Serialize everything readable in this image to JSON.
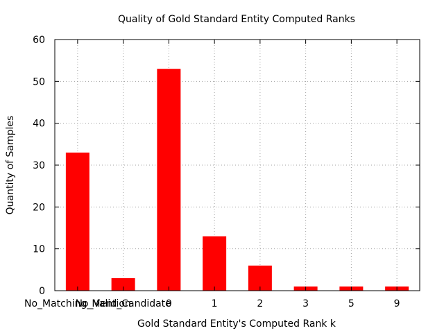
{
  "chart_data": {
    "type": "bar",
    "title": "Quality of Gold Standard Entity Computed Ranks",
    "xlabel": "Gold Standard Entity's Computed Rank k",
    "ylabel": "Quantity of Samples",
    "categories": [
      "No_Matching_Mention",
      "No_Valid_Candidate",
      "0",
      "1",
      "2",
      "3",
      "5",
      "9"
    ],
    "values": [
      33,
      3,
      53,
      13,
      6,
      1,
      1,
      1
    ],
    "ylim": [
      0,
      60
    ],
    "yticks": [
      "0",
      "10",
      "20",
      "30",
      "40",
      "50",
      "60"
    ],
    "grid": true,
    "bar_color": "#ff0000"
  }
}
